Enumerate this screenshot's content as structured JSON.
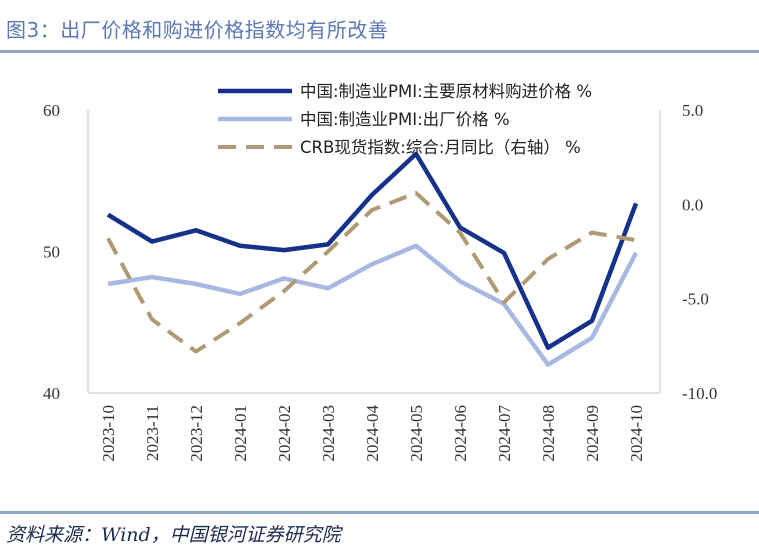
{
  "header": {
    "title": "图3：出厂价格和购进价格指数均有所改善"
  },
  "footer": {
    "source": "资料来源：Wind，中国银河证券研究院"
  },
  "colors": {
    "accent": "#5b78b4",
    "rule": "#8fa5cc",
    "axis": "#d0d0d0"
  },
  "chart_data": {
    "type": "line",
    "categories": [
      "2023-10",
      "2023-11",
      "2023-12",
      "2024-01",
      "2024-02",
      "2024-03",
      "2024-04",
      "2024-05",
      "2024-06",
      "2024-07",
      "2024-08",
      "2024-09",
      "2024-10"
    ],
    "ylim_left": [
      40,
      60
    ],
    "ylim_right": [
      -10.0,
      5.0
    ],
    "yticks_left": [
      "60",
      "50",
      "40"
    ],
    "yticks_right": [
      "5.0",
      "0.0",
      "-5.0",
      "-10.0"
    ],
    "legend_position": "top-right",
    "grid": false,
    "series": [
      {
        "name": "中国:制造业PMI:主要原材料购进价格  %",
        "axis": "left",
        "color": "#16318a",
        "style": "solid",
        "width": 4.5,
        "values": [
          52.6,
          50.7,
          51.5,
          50.4,
          50.1,
          50.5,
          54.0,
          56.9,
          51.7,
          49.9,
          43.2,
          45.1,
          53.4
        ]
      },
      {
        "name": "中国:制造业PMI:出厂价格  %",
        "axis": "left",
        "color": "#a8b8e0",
        "style": "solid",
        "width": 4.5,
        "values": [
          47.7,
          48.2,
          47.7,
          47.0,
          48.1,
          47.4,
          49.1,
          50.4,
          47.9,
          46.3,
          42.0,
          43.9,
          49.9
        ]
      },
      {
        "name": "CRB现货指数:综合:月同比（右轴）  %",
        "axis": "right",
        "color": "#b09a74",
        "style": "dashed",
        "width": 4,
        "values": [
          -1.8,
          -6.1,
          -7.8,
          -6.3,
          -4.6,
          -2.5,
          -0.3,
          0.6,
          -1.5,
          -5.2,
          -2.9,
          -1.5,
          -1.9
        ]
      }
    ]
  }
}
